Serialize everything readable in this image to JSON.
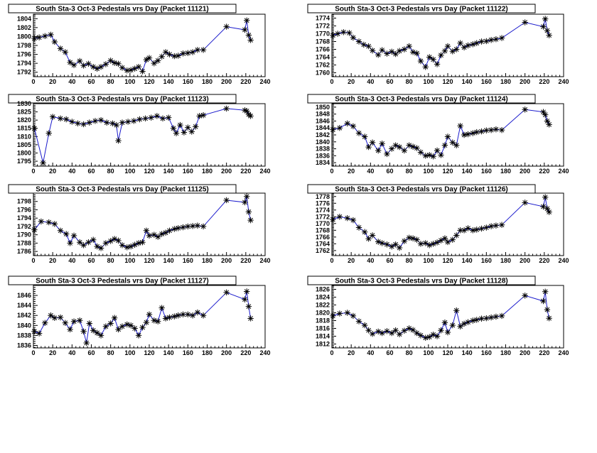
{
  "chart_data": [
    {
      "type": "line",
      "title": "South Sta-3 Oct-3 Pedestals vrs Day (Packet 11121)",
      "xlim": [
        0,
        240
      ],
      "ylim": [
        1791,
        1805
      ],
      "xticks": [
        0,
        20,
        40,
        60,
        80,
        100,
        120,
        140,
        160,
        180,
        200,
        220,
        240
      ],
      "yticks": [
        1792,
        1794,
        1796,
        1798,
        1800,
        1802,
        1804
      ],
      "x": [
        1,
        6,
        12,
        18,
        22,
        28,
        33,
        38,
        42,
        48,
        52,
        57,
        62,
        66,
        70,
        75,
        80,
        84,
        88,
        92,
        97,
        101,
        105,
        109,
        113,
        117,
        120,
        125,
        129,
        133,
        137,
        141,
        146,
        150,
        155,
        160,
        165,
        170,
        176,
        200,
        219,
        221,
        223,
        225
      ],
      "y": [
        1799.6,
        1799.8,
        1800.1,
        1800.4,
        1798.8,
        1797.3,
        1796.5,
        1794.2,
        1793.6,
        1794.5,
        1793.5,
        1793.9,
        1793.2,
        1792.8,
        1793.2,
        1793.8,
        1794.6,
        1794.1,
        1793.9,
        1793.0,
        1792.4,
        1792.5,
        1792.8,
        1793.2,
        1792.2,
        1794.8,
        1795.2,
        1794.0,
        1794.6,
        1795.5,
        1796.5,
        1796.0,
        1795.6,
        1795.7,
        1796.2,
        1796.3,
        1796.5,
        1797.0,
        1797.0,
        1802.2,
        1801.5,
        1803.6,
        1800.3,
        1799.2
      ]
    },
    {
      "type": "line",
      "title": "South Sta-3 Oct-3 Pedestals vrs Day (Packet 11122)",
      "xlim": [
        0,
        240
      ],
      "ylim": [
        1759,
        1775
      ],
      "xticks": [
        0,
        20,
        40,
        60,
        80,
        100,
        120,
        140,
        160,
        180,
        200,
        220,
        240
      ],
      "yticks": [
        1760,
        1762,
        1764,
        1766,
        1768,
        1770,
        1772,
        1774
      ],
      "x": [
        1,
        6,
        12,
        18,
        22,
        28,
        33,
        38,
        42,
        48,
        52,
        57,
        62,
        66,
        70,
        75,
        80,
        84,
        88,
        92,
        97,
        101,
        105,
        109,
        113,
        117,
        120,
        125,
        129,
        133,
        137,
        141,
        146,
        150,
        155,
        160,
        165,
        170,
        176,
        200,
        219,
        221,
        223,
        225
      ],
      "y": [
        1769.6,
        1770.0,
        1770.4,
        1770.2,
        1769.0,
        1768.0,
        1767.2,
        1766.8,
        1765.7,
        1764.6,
        1765.8,
        1764.9,
        1765.4,
        1764.8,
        1765.6,
        1766.0,
        1766.8,
        1765.3,
        1765.0,
        1763.0,
        1761.5,
        1764.0,
        1763.4,
        1762.2,
        1764.5,
        1765.6,
        1766.8,
        1765.5,
        1766.0,
        1767.6,
        1766.5,
        1767.0,
        1767.3,
        1767.6,
        1768.0,
        1768.1,
        1768.4,
        1768.6,
        1768.9,
        1772.9,
        1771.8,
        1773.8,
        1770.8,
        1769.6
      ]
    },
    {
      "type": "line",
      "title": "South Sta-3 Oct-3 Pedestals vrs Day (Packet 11123)",
      "xlim": [
        0,
        240
      ],
      "ylim": [
        1792,
        1830
      ],
      "xticks": [
        0,
        20,
        40,
        60,
        80,
        100,
        120,
        140,
        160,
        180,
        200,
        220,
        240
      ],
      "yticks": [
        1795,
        1800,
        1805,
        1810,
        1815,
        1820,
        1825,
        1830
      ],
      "x": [
        1,
        10,
        16,
        20,
        28,
        34,
        40,
        46,
        52,
        58,
        64,
        70,
        76,
        82,
        86,
        88,
        92,
        98,
        104,
        110,
        116,
        122,
        128,
        134,
        140,
        145,
        148,
        152,
        156,
        160,
        164,
        168,
        172,
        176,
        200,
        219,
        221,
        223,
        225
      ],
      "y": [
        1815.0,
        1794.0,
        1812.0,
        1822.0,
        1821.0,
        1820.5,
        1819.0,
        1818.0,
        1817.5,
        1818.5,
        1819.5,
        1820.0,
        1818.5,
        1818.0,
        1817.0,
        1807.5,
        1818.5,
        1819.0,
        1819.5,
        1820.5,
        1821.0,
        1821.5,
        1822.5,
        1821.0,
        1821.5,
        1815.0,
        1812.0,
        1817.0,
        1812.5,
        1815.5,
        1813.0,
        1816.0,
        1822.5,
        1823.0,
        1827.0,
        1826.0,
        1825.5,
        1823.5,
        1822.5
      ]
    },
    {
      "type": "line",
      "title": "South Sta-3 Oct-3 Pedestals vrs Day (Packet 11124)",
      "xlim": [
        0,
        240
      ],
      "ylim": [
        1833,
        1851
      ],
      "xticks": [
        0,
        20,
        40,
        60,
        80,
        100,
        120,
        140,
        160,
        180,
        200,
        220,
        240
      ],
      "yticks": [
        1834,
        1836,
        1838,
        1840,
        1842,
        1844,
        1846,
        1848,
        1850
      ],
      "x": [
        1,
        8,
        16,
        22,
        28,
        34,
        38,
        42,
        48,
        52,
        57,
        62,
        66,
        70,
        75,
        80,
        84,
        88,
        92,
        97,
        101,
        105,
        109,
        113,
        117,
        120,
        125,
        129,
        133,
        137,
        141,
        146,
        150,
        155,
        160,
        165,
        170,
        176,
        200,
        219,
        221,
        223,
        225
      ],
      "y": [
        1843.5,
        1844.0,
        1845.3,
        1844.5,
        1842.5,
        1841.5,
        1838.5,
        1839.8,
        1837.5,
        1839.5,
        1836.5,
        1838.0,
        1839.0,
        1838.5,
        1837.5,
        1839.0,
        1838.6,
        1838.2,
        1837.0,
        1836.0,
        1836.2,
        1835.8,
        1837.5,
        1836.2,
        1839.0,
        1841.5,
        1839.8,
        1839.0,
        1844.6,
        1842.0,
        1842.2,
        1842.5,
        1842.8,
        1843.0,
        1843.3,
        1843.4,
        1843.6,
        1843.4,
        1849.3,
        1848.6,
        1847.8,
        1846.0,
        1845.0
      ]
    },
    {
      "type": "line",
      "title": "South Sta-3 Oct-3 Pedestals vrs Day (Packet 11125)",
      "xlim": [
        0,
        240
      ],
      "ylim": [
        1785,
        1800
      ],
      "xticks": [
        0,
        20,
        40,
        60,
        80,
        100,
        120,
        140,
        160,
        180,
        200,
        220,
        240
      ],
      "yticks": [
        1786,
        1788,
        1790,
        1792,
        1794,
        1796,
        1798
      ],
      "x": [
        1,
        8,
        16,
        22,
        28,
        34,
        38,
        42,
        48,
        52,
        57,
        62,
        66,
        70,
        75,
        80,
        84,
        88,
        92,
        97,
        101,
        105,
        109,
        113,
        117,
        120,
        125,
        129,
        133,
        137,
        141,
        146,
        150,
        155,
        160,
        165,
        170,
        176,
        200,
        219,
        221,
        223,
        225
      ],
      "y": [
        1791.2,
        1793.2,
        1793.0,
        1792.6,
        1791.0,
        1790.2,
        1788.0,
        1789.8,
        1788.2,
        1787.5,
        1788.2,
        1788.8,
        1787.2,
        1786.8,
        1788.0,
        1788.5,
        1789.0,
        1788.6,
        1787.5,
        1787.0,
        1787.2,
        1787.6,
        1788.0,
        1788.2,
        1791.0,
        1789.8,
        1790.0,
        1789.5,
        1790.2,
        1790.5,
        1791.0,
        1791.4,
        1791.6,
        1791.8,
        1792.0,
        1792.1,
        1792.2,
        1792.0,
        1798.3,
        1797.8,
        1799.2,
        1795.5,
        1793.5
      ]
    },
    {
      "type": "line",
      "title": "South Sta-3 Oct-3 Pedestals vrs Day (Packet 11126)",
      "xlim": [
        0,
        240
      ],
      "ylim": [
        1760.5,
        1779
      ],
      "xticks": [
        0,
        20,
        40,
        60,
        80,
        100,
        120,
        140,
        160,
        180,
        200,
        220,
        240
      ],
      "yticks": [
        1762,
        1764,
        1766,
        1768,
        1770,
        1772,
        1774,
        1776,
        1778
      ],
      "x": [
        1,
        8,
        16,
        22,
        28,
        34,
        38,
        42,
        48,
        52,
        57,
        62,
        66,
        70,
        75,
        80,
        84,
        88,
        92,
        97,
        101,
        105,
        109,
        113,
        117,
        120,
        125,
        129,
        133,
        137,
        141,
        146,
        150,
        155,
        160,
        165,
        170,
        176,
        200,
        219,
        221,
        223,
        225
      ],
      "y": [
        1771.2,
        1772.0,
        1771.6,
        1771.0,
        1768.8,
        1767.5,
        1765.5,
        1766.5,
        1764.6,
        1764.2,
        1763.8,
        1763.2,
        1763.8,
        1762.8,
        1764.8,
        1765.8,
        1765.6,
        1765.2,
        1764.0,
        1764.2,
        1763.6,
        1764.0,
        1764.4,
        1765.0,
        1765.6,
        1764.5,
        1765.2,
        1766.5,
        1768.0,
        1768.0,
        1768.6,
        1768.0,
        1768.2,
        1768.5,
        1768.8,
        1769.2,
        1769.4,
        1769.6,
        1776.2,
        1775.0,
        1777.8,
        1774.4,
        1773.4
      ]
    },
    {
      "type": "line",
      "title": "South Sta-3 Oct-3 Pedestals vrs Day (Packet 11127)",
      "xlim": [
        0,
        240
      ],
      "ylim": [
        1835.5,
        1848
      ],
      "xticks": [
        0,
        20,
        40,
        60,
        80,
        100,
        120,
        140,
        160,
        180,
        200,
        220,
        240
      ],
      "yticks": [
        1836,
        1838,
        1840,
        1842,
        1844,
        1846
      ],
      "x": [
        1,
        6,
        12,
        18,
        22,
        28,
        33,
        38,
        42,
        48,
        52,
        55,
        58,
        62,
        66,
        70,
        75,
        80,
        84,
        88,
        92,
        97,
        101,
        105,
        109,
        113,
        117,
        120,
        125,
        129,
        133,
        137,
        141,
        146,
        150,
        155,
        160,
        165,
        170,
        176,
        200,
        219,
        221,
        223,
        225
      ],
      "y": [
        1838.8,
        1838.4,
        1840.5,
        1842.0,
        1841.5,
        1841.6,
        1840.5,
        1839.2,
        1840.8,
        1841.0,
        1838.8,
        1836.5,
        1840.4,
        1839.0,
        1838.5,
        1838.0,
        1839.8,
        1840.4,
        1841.5,
        1839.2,
        1839.8,
        1840.2,
        1840.0,
        1839.4,
        1838.0,
        1839.6,
        1840.6,
        1842.2,
        1841.0,
        1840.8,
        1843.5,
        1841.4,
        1841.6,
        1841.8,
        1842.0,
        1842.2,
        1842.2,
        1842.0,
        1842.6,
        1842.0,
        1846.6,
        1845.2,
        1846.8,
        1843.8,
        1841.4
      ]
    },
    {
      "type": "line",
      "title": "South Sta-3 Oct-3 Pedestals vrs Day (Packet 11128)",
      "xlim": [
        0,
        240
      ],
      "ylim": [
        1811,
        1827
      ],
      "xticks": [
        0,
        20,
        40,
        60,
        80,
        100,
        120,
        140,
        160,
        180,
        200,
        220,
        240
      ],
      "yticks": [
        1812,
        1814,
        1816,
        1818,
        1820,
        1822,
        1824,
        1826
      ],
      "x": [
        1,
        8,
        16,
        22,
        28,
        34,
        38,
        42,
        48,
        52,
        57,
        62,
        66,
        70,
        75,
        80,
        84,
        88,
        92,
        97,
        101,
        105,
        109,
        113,
        117,
        120,
        125,
        129,
        133,
        137,
        141,
        146,
        150,
        155,
        160,
        165,
        170,
        176,
        200,
        219,
        221,
        223,
        225
      ],
      "y": [
        1819.2,
        1819.8,
        1820.0,
        1819.2,
        1817.8,
        1816.8,
        1815.5,
        1814.6,
        1815.2,
        1814.8,
        1815.3,
        1814.8,
        1815.5,
        1814.5,
        1815.4,
        1816.0,
        1815.6,
        1814.8,
        1814.2,
        1813.6,
        1813.8,
        1814.4,
        1814.0,
        1815.5,
        1817.5,
        1815.0,
        1816.8,
        1820.6,
        1816.5,
        1817.2,
        1817.6,
        1818.0,
        1818.2,
        1818.5,
        1818.6,
        1818.8,
        1819.0,
        1819.2,
        1824.4,
        1823.0,
        1825.4,
        1820.8,
        1818.6
      ]
    }
  ]
}
